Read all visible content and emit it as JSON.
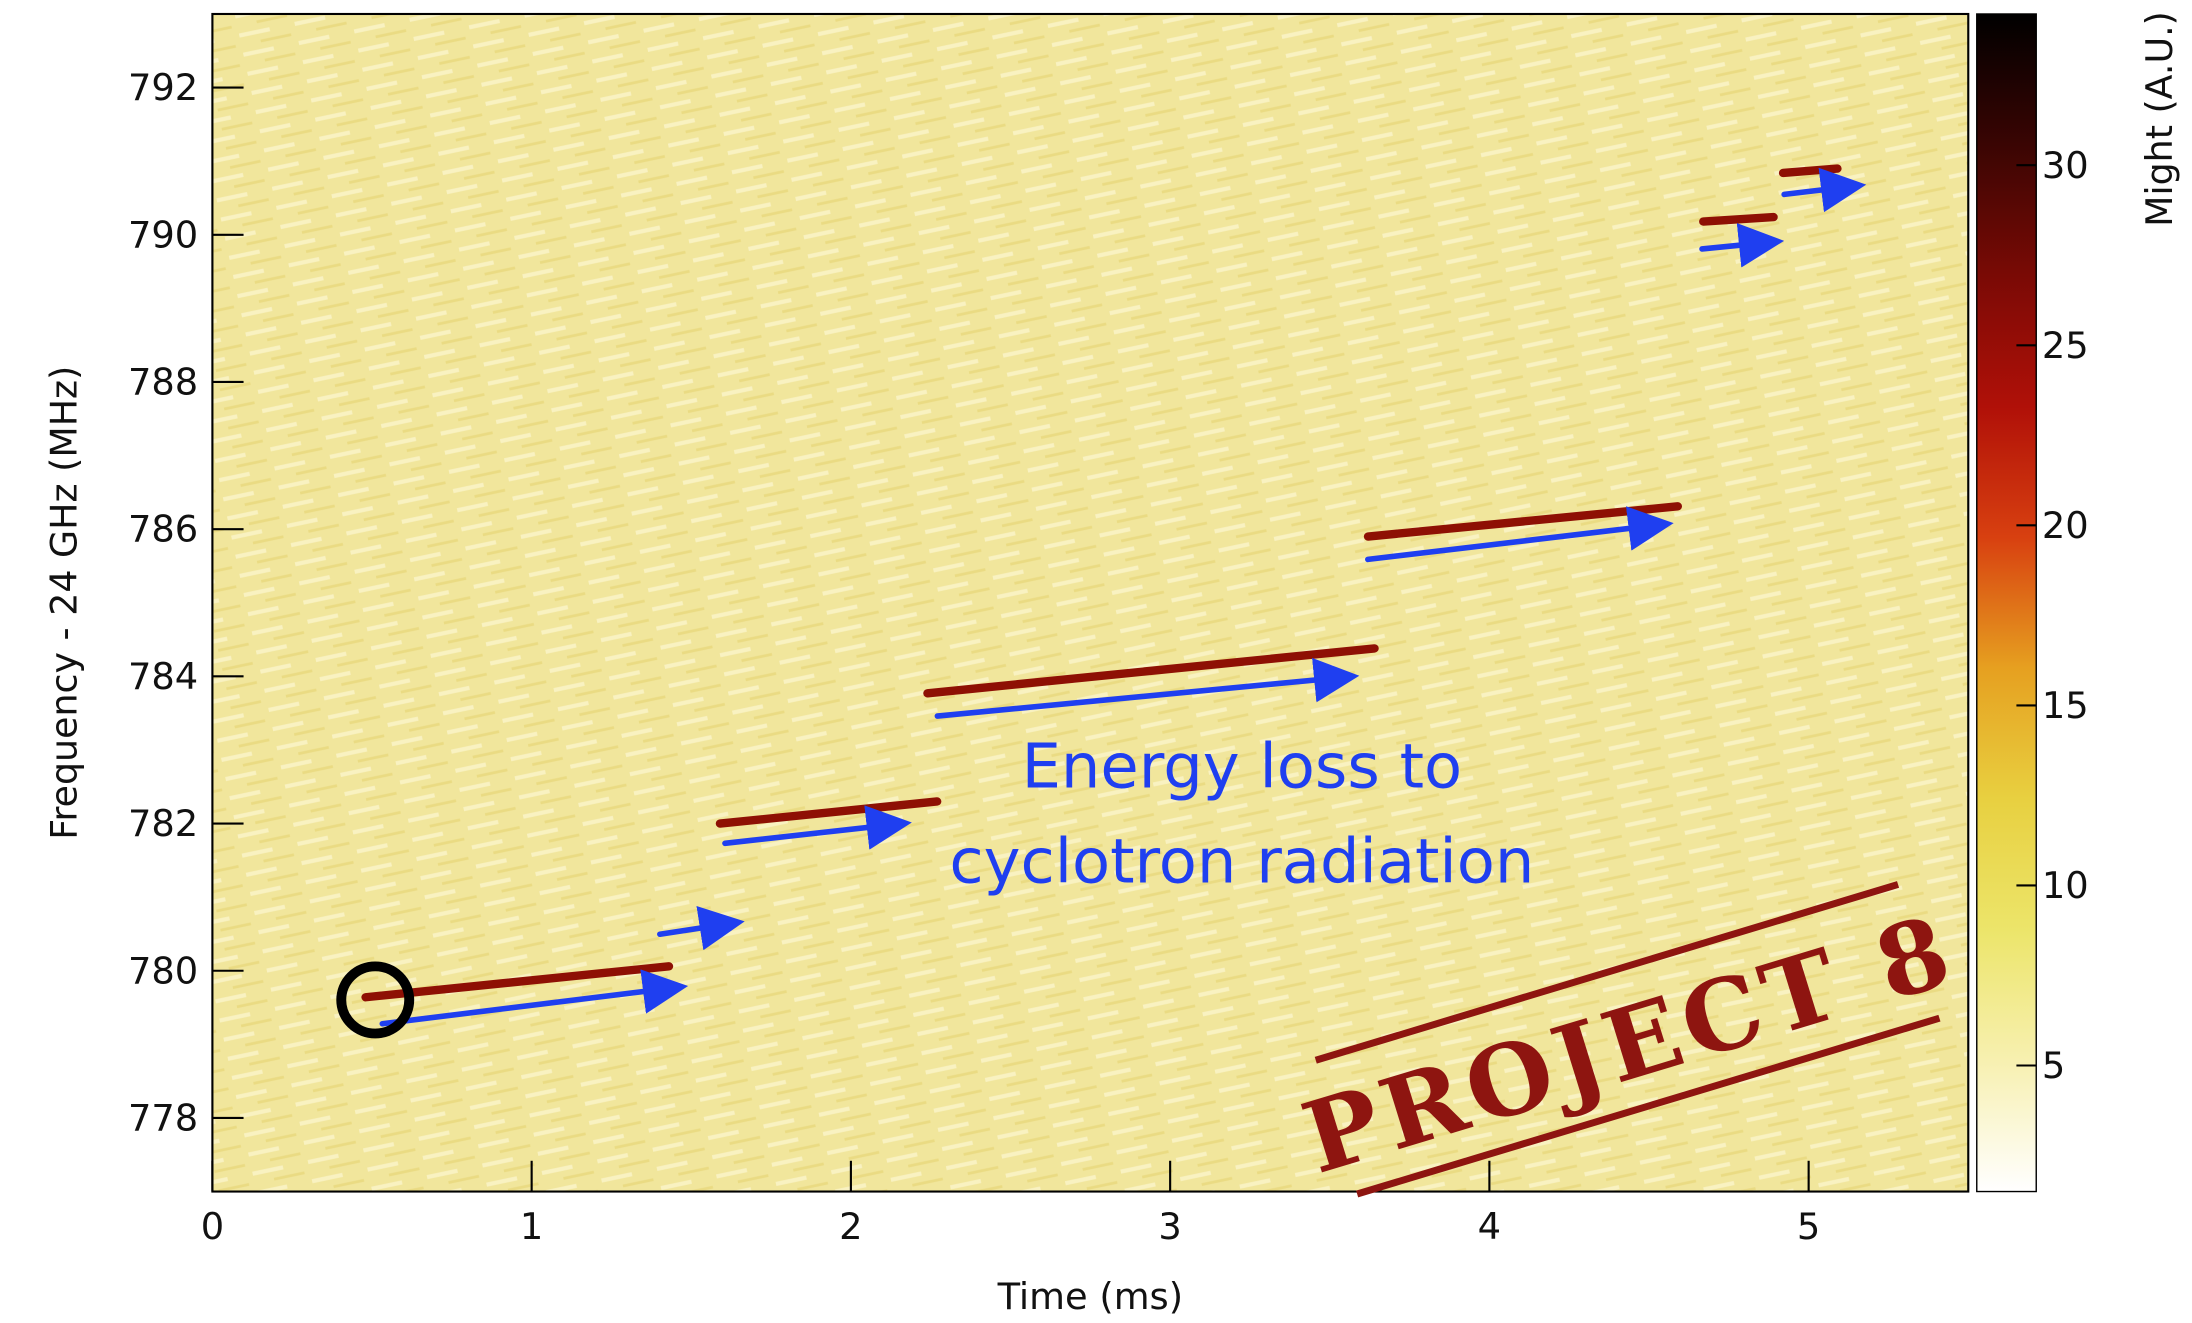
{
  "chart_data": {
    "type": "spectrogram",
    "xlabel": "Time (ms)",
    "ylabel": "Frequency - 24 GHz (MHz)",
    "xlim": [
      0,
      5.5
    ],
    "xticks": [
      0,
      1,
      2,
      3,
      4,
      5
    ],
    "ylim": [
      777,
      793
    ],
    "yticks": [
      778,
      780,
      782,
      784,
      786,
      788,
      790,
      792
    ],
    "colorbar": {
      "label": "Might (A.U.)",
      "clim": [
        1.5,
        34.2
      ],
      "ticks": [
        5,
        10,
        15,
        20,
        25,
        30
      ],
      "colormap": [
        "#ffffff",
        "#f7f0b0",
        "#ece56a",
        "#e8d040",
        "#e6a020",
        "#d84010",
        "#b01008",
        "#7a0a05",
        "#3a0503",
        "#000000"
      ]
    },
    "background_color": "#f1e69c",
    "track_color": "#8e1004",
    "tracks": [
      {
        "x": [
          0.48,
          1.43
        ],
        "y": [
          779.64,
          780.06
        ]
      },
      {
        "x": [
          1.59,
          2.27
        ],
        "y": [
          782.0,
          782.3
        ]
      },
      {
        "x": [
          2.24,
          3.64
        ],
        "y": [
          783.77,
          784.38
        ]
      },
      {
        "x": [
          3.62,
          4.59
        ],
        "y": [
          785.9,
          786.31
        ]
      },
      {
        "x": [
          4.67,
          4.89
        ],
        "y": [
          790.18,
          790.24
        ]
      },
      {
        "x": [
          4.92,
          5.09
        ],
        "y": [
          790.84,
          790.9
        ]
      }
    ],
    "annotation": [
      "Energy loss to",
      "cyclotron radiation"
    ],
    "stamp": "PROJECT 8"
  }
}
